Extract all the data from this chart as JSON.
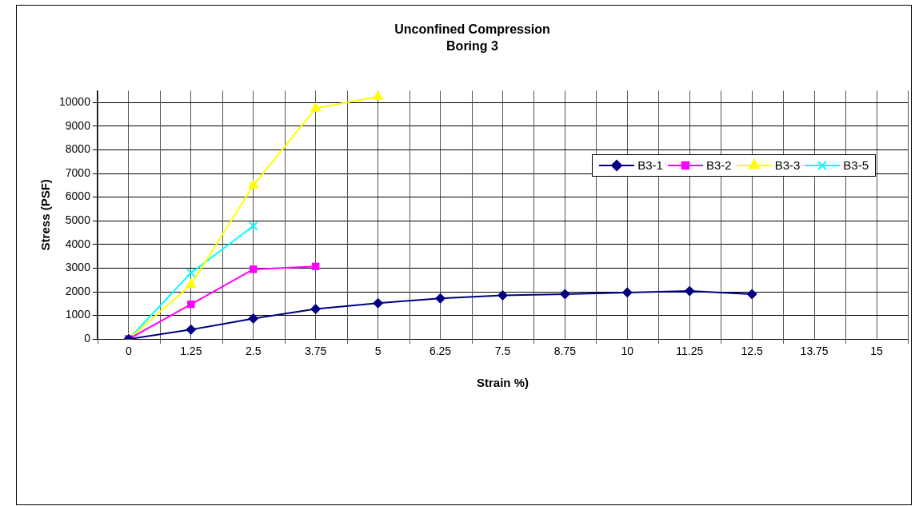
{
  "chart_data": {
    "type": "line",
    "title": "Unconfined Compression",
    "subtitle": "Boring 3",
    "xlabel": "Strain %)",
    "ylabel": "Stress (PSF)",
    "categories": [
      "0",
      "1.25",
      "2.5",
      "3.75",
      "5",
      "6.25",
      "7.5",
      "8.75",
      "10",
      "11.25",
      "12.5",
      "13.75",
      "15"
    ],
    "series": [
      {
        "name": "B3-1",
        "color": "#000080",
        "marker": "diamond",
        "values": [
          0,
          400,
          870,
          1270,
          1520,
          1720,
          1850,
          1900,
          1970,
          2030,
          1900,
          null,
          null
        ]
      },
      {
        "name": "B3-2",
        "color": "#ff00ff",
        "marker": "square",
        "values": [
          0,
          1470,
          2950,
          3070,
          null,
          null,
          null,
          null,
          null,
          null,
          null,
          null,
          null
        ]
      },
      {
        "name": "B3-3",
        "color": "#ffff00",
        "marker": "triangle",
        "values": [
          0,
          2300,
          6500,
          9750,
          10250,
          null,
          null,
          null,
          null,
          null,
          null,
          null,
          null
        ]
      },
      {
        "name": "B3-5",
        "color": "#00ffff",
        "marker": "cross",
        "values": [
          0,
          2800,
          4780,
          null,
          null,
          null,
          null,
          null,
          null,
          null,
          null,
          null,
          null
        ]
      }
    ],
    "ylim": [
      0,
      10500
    ],
    "yticks": [
      0,
      1000,
      2000,
      3000,
      4000,
      5000,
      6000,
      7000,
      8000,
      9000,
      10000
    ],
    "grid": true,
    "legend": "top right"
  }
}
